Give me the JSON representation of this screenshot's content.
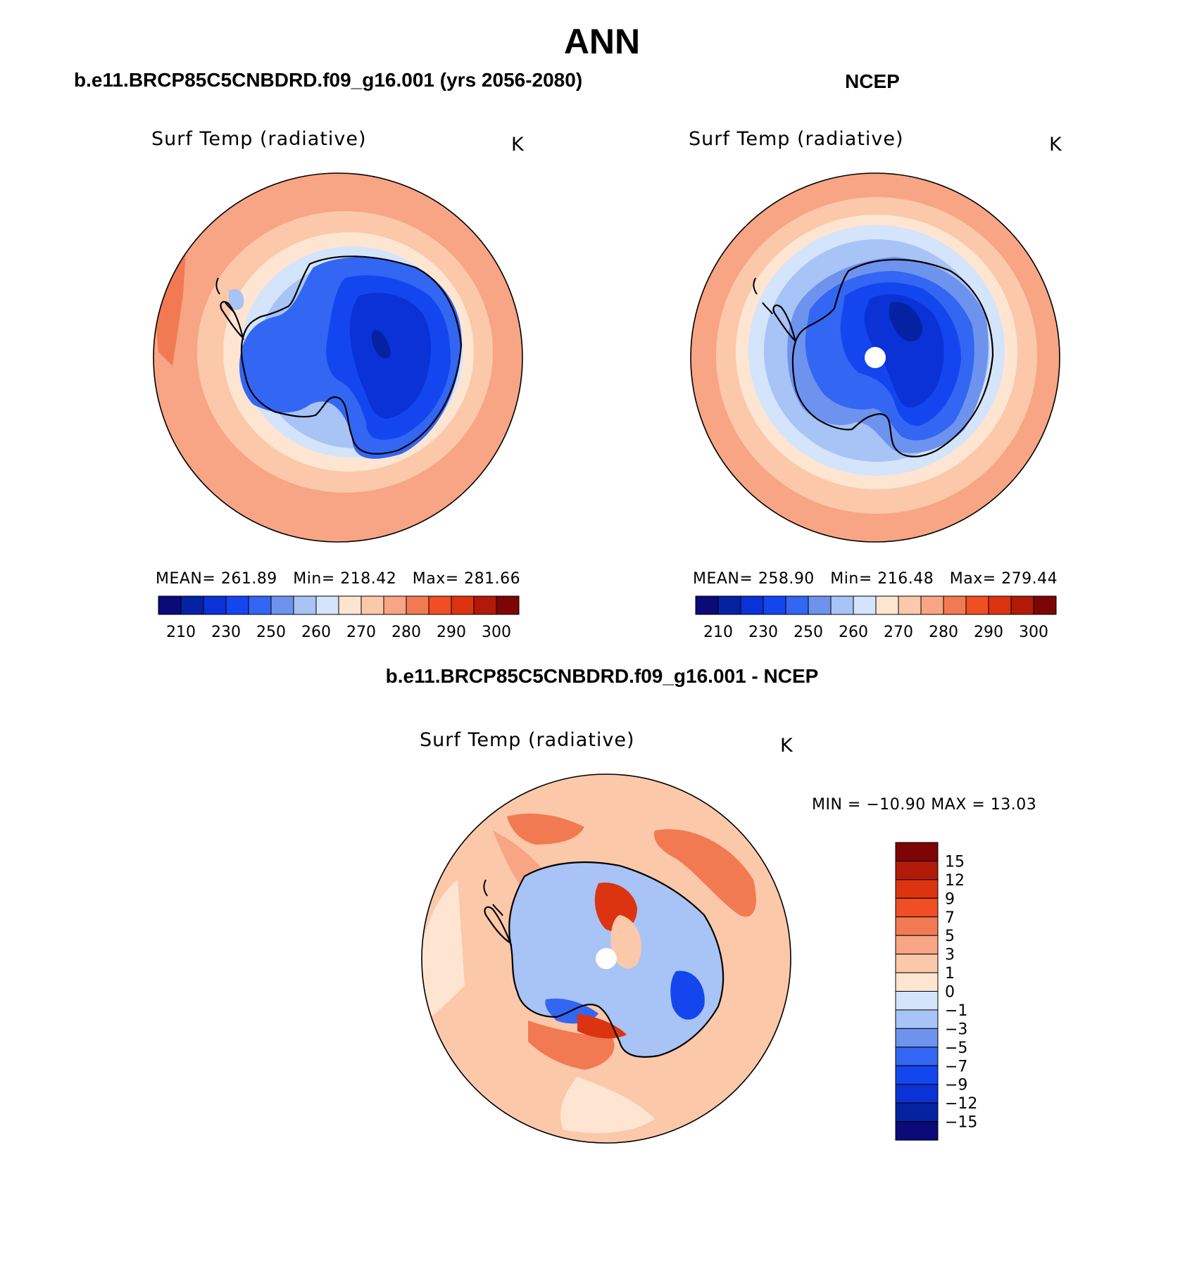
{
  "main_title": "ANN",
  "colors": {
    "abs_levels": [
      "#0a0a78",
      "#0522a3",
      "#0a32d6",
      "#1446f0",
      "#3366f2",
      "#6e93ee",
      "#a8c3f5",
      "#d3e4fb",
      "#fde5d2",
      "#fcc8aa",
      "#f7a584",
      "#f27a52",
      "#f04e23",
      "#dc3410",
      "#b21a08",
      "#7d0505"
    ],
    "diff_levels": [
      "#0a0a78",
      "#0522a3",
      "#0a32d6",
      "#1446f0",
      "#3366f2",
      "#6e93ee",
      "#a8c3f5",
      "#d3e4fb",
      "#fde5d2",
      "#fcc8aa",
      "#f7a584",
      "#f27a52",
      "#f04e23",
      "#dc3410",
      "#b21a08",
      "#7d0505"
    ],
    "missing": "#ffffff"
  },
  "panels": {
    "left": {
      "title": "b.e11.BRCP85C5CNBDRD.f09_g16.001 (yrs 2056-2080)",
      "variable": "Surf Temp (radiative)",
      "units": "K",
      "mean_label": "MEAN=",
      "mean_value": "261.89",
      "min_label": "Min=",
      "min_value": "218.42",
      "max_label": "Max=",
      "max_value": "281.66",
      "colorbar_ticks": [
        "210",
        "230",
        "250",
        "260",
        "270",
        "280",
        "290",
        "300"
      ]
    },
    "right": {
      "title": "NCEP",
      "variable": "Surf Temp (radiative)",
      "units": "K",
      "mean_label": "MEAN=",
      "mean_value": "258.90",
      "min_label": "Min=",
      "min_value": "216.48",
      "max_label": "Max=",
      "max_value": "279.44",
      "colorbar_ticks": [
        "210",
        "230",
        "250",
        "260",
        "270",
        "280",
        "290",
        "300"
      ]
    },
    "bottom": {
      "title": "b.e11.BRCP85C5CNBDRD.f09_g16.001 - NCEP",
      "variable": "Surf Temp (radiative)",
      "units": "K",
      "minmax_text": "MIN = −10.90  MAX =   13.03",
      "colorbar_ticks": [
        "15",
        "12",
        "9",
        "7",
        "5",
        "3",
        "1",
        "0",
        "−1",
        "−3",
        "−5",
        "−7",
        "−9",
        "−12",
        "−15"
      ]
    }
  }
}
